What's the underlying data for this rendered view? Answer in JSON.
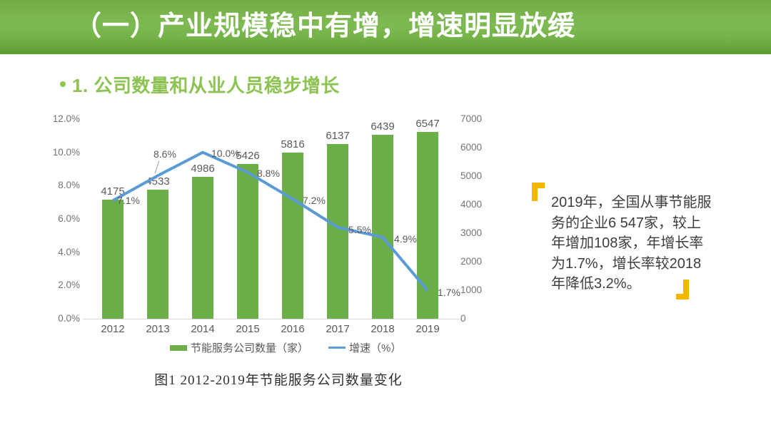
{
  "header": {
    "title": "（一）产业规模稳中有增，增速明显放缓"
  },
  "subtitle": {
    "text": "1. 公司数量和从业人员稳步增长"
  },
  "chart_data": {
    "type": "bar",
    "subtype": "combo bar+line, dual axis",
    "categories": [
      "2012",
      "2013",
      "2014",
      "2015",
      "2016",
      "2017",
      "2018",
      "2019"
    ],
    "series": [
      {
        "name": "节能服务公司数量（家）",
        "type": "bar",
        "axis": "right",
        "color": "#6cae4a",
        "values": [
          4175,
          4533,
          4986,
          5426,
          5816,
          6137,
          6439,
          6547
        ]
      },
      {
        "name": "增速（%）",
        "type": "line",
        "axis": "left",
        "color": "#5b9bd5",
        "values": [
          7.1,
          8.6,
          10.0,
          8.8,
          7.2,
          5.5,
          4.9,
          1.7
        ],
        "labels": [
          "7.1%",
          "8.6%",
          "10.0%",
          "8.8%",
          "7.2%",
          "5.5%",
          "4.9%",
          "1.7%"
        ]
      }
    ],
    "left_axis": {
      "ticks": [
        "12.0%",
        "10.0%",
        "8.0%",
        "6.0%",
        "4.0%",
        "2.0%",
        "0.0%"
      ],
      "min": 0,
      "max": 12
    },
    "right_axis": {
      "ticks": [
        "7000",
        "6000",
        "5000",
        "4000",
        "3000",
        "2000",
        "1000",
        "0"
      ],
      "min": 0,
      "max": 7000
    },
    "grid": false,
    "legend_position": "bottom",
    "title": ""
  },
  "caption": "图1  2012-2019年节能服务公司数量变化",
  "quote": {
    "lines": [
      "2019年，全国从事节能服",
      "务的企业6 547家，较上",
      "年增加108家，年增长率",
      "为1.7%，增长率较2018",
      "年降低3.2%。"
    ]
  },
  "colors": {
    "banner_green_top": "#72ab44",
    "banner_green_bottom": "#5c9c30",
    "subtitle_green": "#8cc352",
    "bar_green": "#6cae4a",
    "line_blue": "#5b9bd5",
    "quote_yellow": "#f2b600",
    "axis_gray": "#737373",
    "label_gray": "#595959"
  }
}
